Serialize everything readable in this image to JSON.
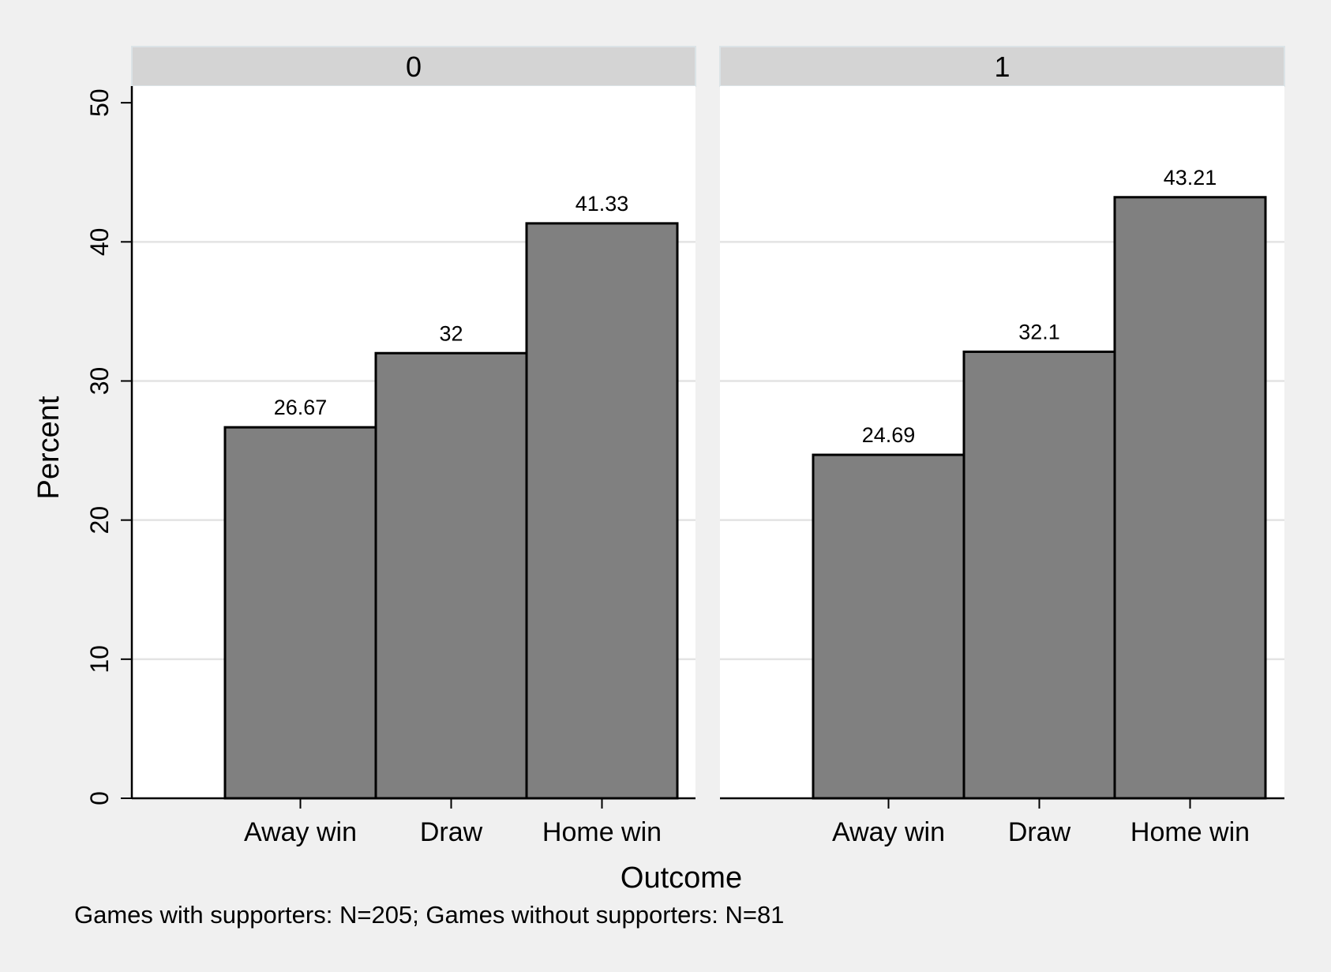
{
  "chart_data": {
    "type": "bar",
    "ylabel": "Percent",
    "xlabel": "Outcome",
    "note": "Games with supporters: N=205; Games without supporters: N=81",
    "ylim": [
      0,
      50
    ],
    "yticks": [
      0,
      10,
      20,
      30,
      40,
      50
    ],
    "grid": true,
    "categories": [
      "Away win",
      "Draw",
      "Home win"
    ],
    "panels": [
      {
        "label": "0",
        "values": [
          26.67,
          32,
          41.33
        ],
        "value_labels": [
          "26.67",
          "32",
          "41.33"
        ]
      },
      {
        "label": "1",
        "values": [
          24.69,
          32.1,
          43.21
        ],
        "value_labels": [
          "24.69",
          "32.1",
          "43.21"
        ]
      }
    ],
    "colors": {
      "background": "#f0f0f0",
      "plot_area": "#ffffff",
      "bar_fill": "#808080",
      "bar_stroke": "#000000",
      "grid": "#e3e3e3",
      "panel_header": "#d4d4d4",
      "panel_header_border": "#dbe3e6"
    }
  }
}
